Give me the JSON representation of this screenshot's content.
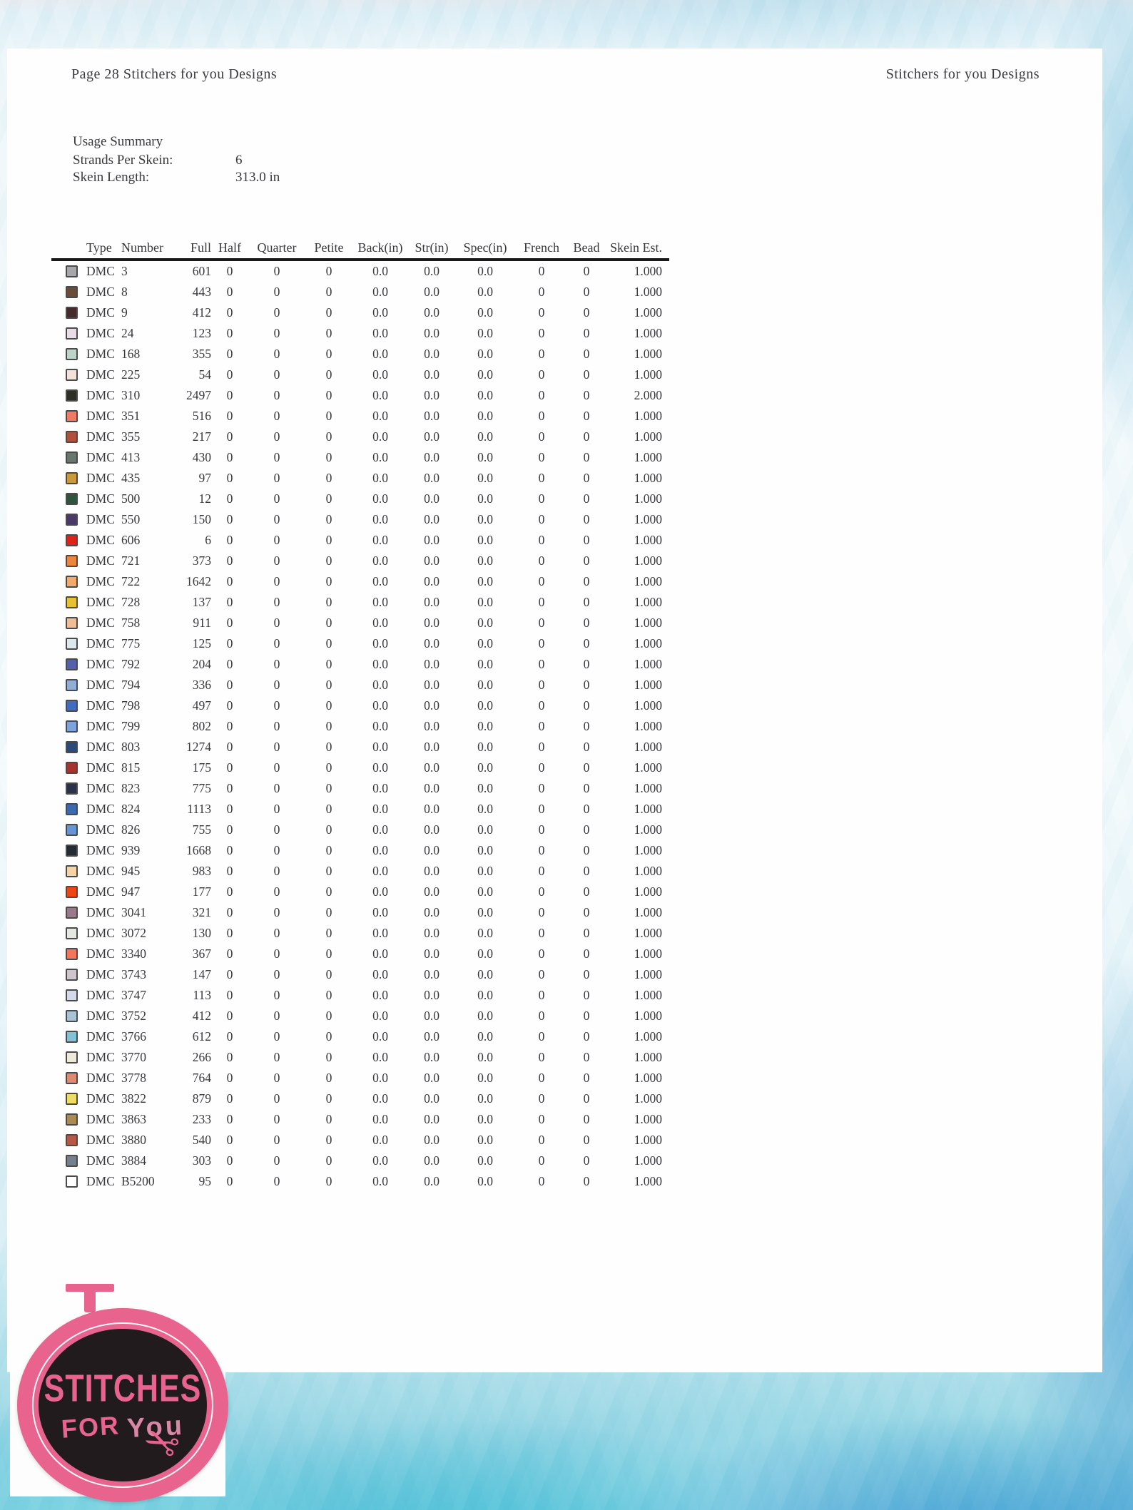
{
  "header": {
    "left": "Page 28  Stitchers for you Designs",
    "right": "Stitchers for you Designs"
  },
  "summary": {
    "title": "Usage Summary",
    "rows": [
      {
        "label": "Strands Per Skein:",
        "value": "6"
      },
      {
        "label": "Skein Length:",
        "value": "313.0 in"
      }
    ]
  },
  "table": {
    "columns": [
      "Type",
      "Number",
      "Full",
      "Half",
      "Quarter",
      "Petite",
      "Back(in)",
      "Str(in)",
      "Spec(in)",
      "French",
      "Bead",
      "Skein Est."
    ],
    "rows": [
      {
        "swatch": "#a7a7ab",
        "cells": [
          "DMC",
          "3",
          "601",
          "0",
          "0",
          "0",
          "0.0",
          "0.0",
          "0.0",
          "0",
          "0",
          "1.000"
        ]
      },
      {
        "swatch": "#6b4c38",
        "cells": [
          "DMC",
          "8",
          "443",
          "0",
          "0",
          "0",
          "0.0",
          "0.0",
          "0.0",
          "0",
          "0",
          "1.000"
        ]
      },
      {
        "swatch": "#46292a",
        "cells": [
          "DMC",
          "9",
          "412",
          "0",
          "0",
          "0",
          "0.0",
          "0.0",
          "0.0",
          "0",
          "0",
          "1.000"
        ]
      },
      {
        "swatch": "#e9dce7",
        "cells": [
          "DMC",
          "24",
          "123",
          "0",
          "0",
          "0",
          "0.0",
          "0.0",
          "0.0",
          "0",
          "0",
          "1.000"
        ]
      },
      {
        "swatch": "#bed4cb",
        "cells": [
          "DMC",
          "168",
          "355",
          "0",
          "0",
          "0",
          "0.0",
          "0.0",
          "0.0",
          "0",
          "0",
          "1.000"
        ]
      },
      {
        "swatch": "#f2e2da",
        "cells": [
          "DMC",
          "225",
          "54",
          "0",
          "0",
          "0",
          "0.0",
          "0.0",
          "0.0",
          "0",
          "0",
          "1.000"
        ]
      },
      {
        "swatch": "#2c3027",
        "cells": [
          "DMC",
          "310",
          "2497",
          "0",
          "0",
          "0",
          "0.0",
          "0.0",
          "0.0",
          "0",
          "0",
          "2.000"
        ]
      },
      {
        "swatch": "#f07b63",
        "cells": [
          "DMC",
          "351",
          "516",
          "0",
          "0",
          "0",
          "0.0",
          "0.0",
          "0.0",
          "0",
          "0",
          "1.000"
        ]
      },
      {
        "swatch": "#b0503a",
        "cells": [
          "DMC",
          "355",
          "217",
          "0",
          "0",
          "0",
          "0.0",
          "0.0",
          "0.0",
          "0",
          "0",
          "1.000"
        ]
      },
      {
        "swatch": "#68766c",
        "cells": [
          "DMC",
          "413",
          "430",
          "0",
          "0",
          "0",
          "0.0",
          "0.0",
          "0.0",
          "0",
          "0",
          "1.000"
        ]
      },
      {
        "swatch": "#c89a3d",
        "cells": [
          "DMC",
          "435",
          "97",
          "0",
          "0",
          "0",
          "0.0",
          "0.0",
          "0.0",
          "0",
          "0",
          "1.000"
        ]
      },
      {
        "swatch": "#2e5440",
        "cells": [
          "DMC",
          "500",
          "12",
          "0",
          "0",
          "0",
          "0.0",
          "0.0",
          "0.0",
          "0",
          "0",
          "1.000"
        ]
      },
      {
        "swatch": "#4a3a67",
        "cells": [
          "DMC",
          "550",
          "150",
          "0",
          "0",
          "0",
          "0.0",
          "0.0",
          "0.0",
          "0",
          "0",
          "1.000"
        ]
      },
      {
        "swatch": "#e02317",
        "cells": [
          "DMC",
          "606",
          "6",
          "0",
          "0",
          "0",
          "0.0",
          "0.0",
          "0.0",
          "0",
          "0",
          "1.000"
        ]
      },
      {
        "swatch": "#ec8540",
        "cells": [
          "DMC",
          "721",
          "373",
          "0",
          "0",
          "0",
          "0.0",
          "0.0",
          "0.0",
          "0",
          "0",
          "1.000"
        ]
      },
      {
        "swatch": "#f2a96c",
        "cells": [
          "DMC",
          "722",
          "1642",
          "0",
          "0",
          "0",
          "0.0",
          "0.0",
          "0.0",
          "0",
          "0",
          "1.000"
        ]
      },
      {
        "swatch": "#e6c232",
        "cells": [
          "DMC",
          "728",
          "137",
          "0",
          "0",
          "0",
          "0.0",
          "0.0",
          "0.0",
          "0",
          "0",
          "1.000"
        ]
      },
      {
        "swatch": "#efbd96",
        "cells": [
          "DMC",
          "758",
          "911",
          "0",
          "0",
          "0",
          "0.0",
          "0.0",
          "0.0",
          "0",
          "0",
          "1.000"
        ]
      },
      {
        "swatch": "#dce8ec",
        "cells": [
          "DMC",
          "775",
          "125",
          "0",
          "0",
          "0",
          "0.0",
          "0.0",
          "0.0",
          "0",
          "0",
          "1.000"
        ]
      },
      {
        "swatch": "#5460ab",
        "cells": [
          "DMC",
          "792",
          "204",
          "0",
          "0",
          "0",
          "0.0",
          "0.0",
          "0.0",
          "0",
          "0",
          "1.000"
        ]
      },
      {
        "swatch": "#93aed4",
        "cells": [
          "DMC",
          "794",
          "336",
          "0",
          "0",
          "0",
          "0.0",
          "0.0",
          "0.0",
          "0",
          "0",
          "1.000"
        ]
      },
      {
        "swatch": "#3f6cc0",
        "cells": [
          "DMC",
          "798",
          "497",
          "0",
          "0",
          "0",
          "0.0",
          "0.0",
          "0.0",
          "0",
          "0",
          "1.000"
        ]
      },
      {
        "swatch": "#7da2dc",
        "cells": [
          "DMC",
          "799",
          "802",
          "0",
          "0",
          "0",
          "0.0",
          "0.0",
          "0.0",
          "0",
          "0",
          "1.000"
        ]
      },
      {
        "swatch": "#2c4a77",
        "cells": [
          "DMC",
          "803",
          "1274",
          "0",
          "0",
          "0",
          "0.0",
          "0.0",
          "0.0",
          "0",
          "0",
          "1.000"
        ]
      },
      {
        "swatch": "#a5342e",
        "cells": [
          "DMC",
          "815",
          "175",
          "0",
          "0",
          "0",
          "0.0",
          "0.0",
          "0.0",
          "0",
          "0",
          "1.000"
        ]
      },
      {
        "swatch": "#2b3148",
        "cells": [
          "DMC",
          "823",
          "775",
          "0",
          "0",
          "0",
          "0.0",
          "0.0",
          "0.0",
          "0",
          "0",
          "1.000"
        ]
      },
      {
        "swatch": "#3c69ad",
        "cells": [
          "DMC",
          "824",
          "1113",
          "0",
          "0",
          "0",
          "0.0",
          "0.0",
          "0.0",
          "0",
          "0",
          "1.000"
        ]
      },
      {
        "swatch": "#6695d4",
        "cells": [
          "DMC",
          "826",
          "755",
          "0",
          "0",
          "0",
          "0.0",
          "0.0",
          "0.0",
          "0",
          "0",
          "1.000"
        ]
      },
      {
        "swatch": "#262a33",
        "cells": [
          "DMC",
          "939",
          "1668",
          "0",
          "0",
          "0",
          "0.0",
          "0.0",
          "0.0",
          "0",
          "0",
          "1.000"
        ]
      },
      {
        "swatch": "#f4d4a4",
        "cells": [
          "DMC",
          "945",
          "983",
          "0",
          "0",
          "0",
          "0.0",
          "0.0",
          "0.0",
          "0",
          "0",
          "1.000"
        ]
      },
      {
        "swatch": "#ee4517",
        "cells": [
          "DMC",
          "947",
          "177",
          "0",
          "0",
          "0",
          "0.0",
          "0.0",
          "0.0",
          "0",
          "0",
          "1.000"
        ]
      },
      {
        "swatch": "#9a7a8a",
        "cells": [
          "DMC",
          "3041",
          "321",
          "0",
          "0",
          "0",
          "0.0",
          "0.0",
          "0.0",
          "0",
          "0",
          "1.000"
        ]
      },
      {
        "swatch": "#e4e8e0",
        "cells": [
          "DMC",
          "3072",
          "130",
          "0",
          "0",
          "0",
          "0.0",
          "0.0",
          "0.0",
          "0",
          "0",
          "1.000"
        ]
      },
      {
        "swatch": "#f3765a",
        "cells": [
          "DMC",
          "3340",
          "367",
          "0",
          "0",
          "0",
          "0.0",
          "0.0",
          "0.0",
          "0",
          "0",
          "1.000"
        ]
      },
      {
        "swatch": "#cfc6cd",
        "cells": [
          "DMC",
          "3743",
          "147",
          "0",
          "0",
          "0",
          "0.0",
          "0.0",
          "0.0",
          "0",
          "0",
          "1.000"
        ]
      },
      {
        "swatch": "#d4d8e8",
        "cells": [
          "DMC",
          "3747",
          "113",
          "0",
          "0",
          "0",
          "0.0",
          "0.0",
          "0.0",
          "0",
          "0",
          "1.000"
        ]
      },
      {
        "swatch": "#a9c3d4",
        "cells": [
          "DMC",
          "3752",
          "412",
          "0",
          "0",
          "0",
          "0.0",
          "0.0",
          "0.0",
          "0",
          "0",
          "1.000"
        ]
      },
      {
        "swatch": "#82c2d4",
        "cells": [
          "DMC",
          "3766",
          "612",
          "0",
          "0",
          "0",
          "0.0",
          "0.0",
          "0.0",
          "0",
          "0",
          "1.000"
        ]
      },
      {
        "swatch": "#eeeada",
        "cells": [
          "DMC",
          "3770",
          "266",
          "0",
          "0",
          "0",
          "0.0",
          "0.0",
          "0.0",
          "0",
          "0",
          "1.000"
        ]
      },
      {
        "swatch": "#dd8a70",
        "cells": [
          "DMC",
          "3778",
          "764",
          "0",
          "0",
          "0",
          "0.0",
          "0.0",
          "0.0",
          "0",
          "0",
          "1.000"
        ]
      },
      {
        "swatch": "#eedd64",
        "cells": [
          "DMC",
          "3822",
          "879",
          "0",
          "0",
          "0",
          "0.0",
          "0.0",
          "0.0",
          "0",
          "0",
          "1.000"
        ]
      },
      {
        "swatch": "#ab8a54",
        "cells": [
          "DMC",
          "3863",
          "233",
          "0",
          "0",
          "0",
          "0.0",
          "0.0",
          "0.0",
          "0",
          "0",
          "1.000"
        ]
      },
      {
        "swatch": "#b55847",
        "cells": [
          "DMC",
          "3880",
          "540",
          "0",
          "0",
          "0",
          "0.0",
          "0.0",
          "0.0",
          "0",
          "0",
          "1.000"
        ]
      },
      {
        "swatch": "#74808c",
        "cells": [
          "DMC",
          "3884",
          "303",
          "0",
          "0",
          "0",
          "0.0",
          "0.0",
          "0.0",
          "0",
          "0",
          "1.000"
        ]
      },
      {
        "swatch": "#ffffff",
        "cells": [
          "DMC",
          "B5200",
          "95",
          "0",
          "0",
          "0",
          "0.0",
          "0.0",
          "0.0",
          "0",
          "0",
          "1.000"
        ]
      }
    ]
  },
  "logo": {
    "line1": "STITCHES",
    "line2": "FOR",
    "line3": "You",
    "scissors_glyph": "✂",
    "accent_color": "#e8648e",
    "inner_color": "#211b1d"
  }
}
